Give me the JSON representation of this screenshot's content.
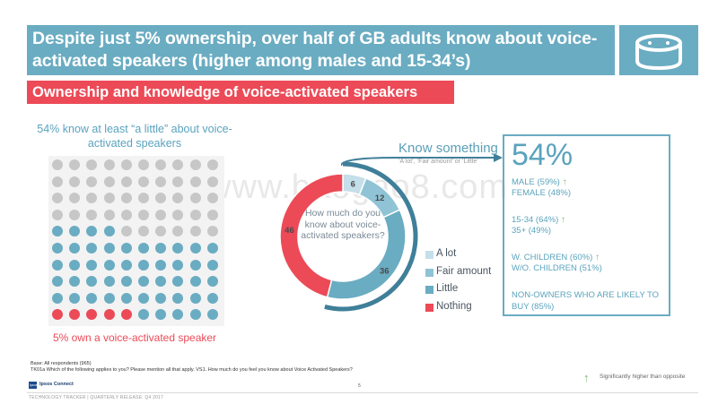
{
  "headline": "Despite just 5% ownership, over half of GB adults know about voice-activated speakers (higher among males and 15-34’s)",
  "subheading": "Ownership and knowledge of voice-activated speakers",
  "icon": "smart-speaker-icon",
  "dot_grid": {
    "know_caption": "54% know at least “a little” about voice-activated speakers",
    "own_caption": "5% own a voice-activated speaker",
    "rows": 10,
    "cols": 10,
    "know_percent": 54,
    "own_percent": 5,
    "colors": {
      "none": "#c7c7c7",
      "know": "#6aacc2",
      "own": "#ec4a57"
    }
  },
  "donut_question": "How much do you know about voice-activated speakers?",
  "know_something": {
    "title": "Know something",
    "subtitle": "‘A lot’, ‘Fair amount’ or ‘Little’",
    "total": "54%",
    "stats": [
      {
        "text": "MALE (59%)",
        "significant": true
      },
      {
        "text": "FEMALE (48%)",
        "significant": false
      },
      {
        "text": "15-34 (64%)",
        "significant": true
      },
      {
        "text": "35+ (49%)",
        "significant": false
      },
      {
        "text": "W. CHILDREN (60%)",
        "significant": true
      },
      {
        "text": "W/O. CHILDREN (51%)",
        "significant": false
      },
      {
        "text": "NON-OWNERS WHO ARE LIKELY TO BUY (85%)",
        "significant": false
      }
    ]
  },
  "chart_data": {
    "type": "pie",
    "variant": "donut",
    "categories": [
      "A lot",
      "Fair amount",
      "Little",
      "Nothing"
    ],
    "values": [
      6,
      12,
      36,
      46
    ],
    "colors": [
      "#c5dfea",
      "#8fc3d5",
      "#6aacc2",
      "#ec4a57"
    ],
    "legend_position": "right"
  },
  "base_note": [
    "Base: All respondents (965)",
    "TK01a Which of the following applies to you? Please mention all that apply. VS1. How much do you feel you know about Voice Activated Speakers?"
  ],
  "page_number": "5",
  "logo_small": "Ipsos",
  "brand": "Ipsos Connect",
  "significance_note": "Significantly higher than opposite",
  "footer": "TECHNOLOGY TRACKER  |  QUARTERLY RELEASE: Q4 2017",
  "watermark": "www.baogao8.com"
}
